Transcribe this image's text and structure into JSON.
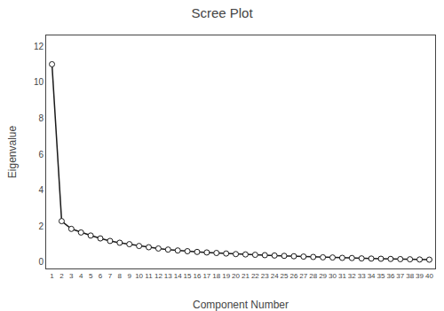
{
  "chart_data": {
    "type": "line",
    "title": "Scree Plot",
    "xlabel": "Component Number",
    "ylabel": "Eigenvalue",
    "x": [
      1,
      2,
      3,
      4,
      5,
      6,
      7,
      8,
      9,
      10,
      11,
      12,
      13,
      14,
      15,
      16,
      17,
      18,
      19,
      20,
      21,
      22,
      23,
      24,
      25,
      26,
      27,
      28,
      29,
      30,
      31,
      32,
      33,
      34,
      35,
      36,
      37,
      38,
      39,
      40
    ],
    "values": [
      11.0,
      2.28,
      1.85,
      1.65,
      1.48,
      1.32,
      1.18,
      1.08,
      1.0,
      0.9,
      0.83,
      0.76,
      0.7,
      0.65,
      0.61,
      0.57,
      0.54,
      0.51,
      0.48,
      0.45,
      0.43,
      0.41,
      0.39,
      0.37,
      0.35,
      0.33,
      0.31,
      0.29,
      0.27,
      0.26,
      0.24,
      0.23,
      0.21,
      0.2,
      0.19,
      0.18,
      0.17,
      0.16,
      0.15,
      0.14
    ],
    "color": "#1a1a1a",
    "marker": "circle",
    "xlim": [
      0.4,
      40.6
    ],
    "ylim": [
      -0.35,
      12.6
    ],
    "xticks": [
      1,
      2,
      3,
      4,
      5,
      6,
      7,
      8,
      9,
      10,
      11,
      12,
      13,
      14,
      15,
      16,
      17,
      18,
      19,
      20,
      21,
      22,
      23,
      24,
      25,
      26,
      27,
      28,
      29,
      30,
      31,
      32,
      33,
      34,
      35,
      36,
      37,
      38,
      39,
      40
    ],
    "yticks": [
      0,
      2,
      4,
      6,
      8,
      10,
      12
    ],
    "grid": false
  }
}
